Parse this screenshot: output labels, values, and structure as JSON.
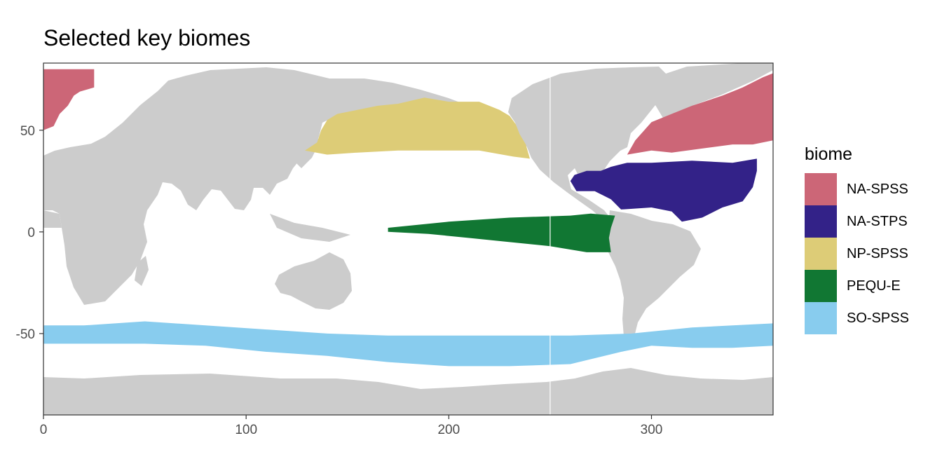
{
  "title": "Selected key biomes",
  "chart_data": {
    "type": "map",
    "title": "Selected key biomes",
    "xlabel": "",
    "ylabel": "",
    "xlim": [
      0,
      360
    ],
    "ylim": [
      -90,
      83
    ],
    "x_ticks": [
      0,
      100,
      200,
      300
    ],
    "y_ticks": [
      -50,
      0,
      50
    ],
    "grid": false,
    "land_color": "#cccccc",
    "ocean_color": "#ffffff",
    "legend": {
      "title": "biome",
      "position": "right",
      "entries": [
        {
          "name": "NA-SPSS",
          "color": "#cc6677"
        },
        {
          "name": "NA-STPS",
          "color": "#332288"
        },
        {
          "name": "NP-SPSS",
          "color": "#ddcc77"
        },
        {
          "name": "PEQU-E",
          "color": "#117733"
        },
        {
          "name": "SO-SPSS",
          "color": "#88ccee"
        }
      ]
    },
    "regions": [
      {
        "name": "SO-SPSS",
        "color": "#88ccee",
        "outline": [
          [
            0,
            -46
          ],
          [
            20,
            -46
          ],
          [
            50,
            -44
          ],
          [
            80,
            -46
          ],
          [
            110,
            -48
          ],
          [
            140,
            -50
          ],
          [
            170,
            -51
          ],
          [
            200,
            -51
          ],
          [
            230,
            -51
          ],
          [
            260,
            -51
          ],
          [
            290,
            -50
          ],
          [
            320,
            -47
          ],
          [
            340,
            -46
          ],
          [
            360,
            -45
          ],
          [
            360,
            -56
          ],
          [
            340,
            -57
          ],
          [
            320,
            -57
          ],
          [
            300,
            -56
          ],
          [
            285,
            -59
          ],
          [
            260,
            -65
          ],
          [
            230,
            -66
          ],
          [
            200,
            -66
          ],
          [
            170,
            -64
          ],
          [
            140,
            -61
          ],
          [
            110,
            -59
          ],
          [
            80,
            -56
          ],
          [
            50,
            -55
          ],
          [
            20,
            -55
          ],
          [
            0,
            -55
          ]
        ]
      },
      {
        "name": "PEQU-E",
        "color": "#117733",
        "outline": [
          [
            170,
            2
          ],
          [
            200,
            5
          ],
          [
            230,
            7
          ],
          [
            260,
            8
          ],
          [
            270,
            9
          ],
          [
            282,
            8
          ],
          [
            280,
            2
          ],
          [
            279,
            -3
          ],
          [
            280,
            -10
          ],
          [
            268,
            -10
          ],
          [
            250,
            -7
          ],
          [
            230,
            -5
          ],
          [
            210,
            -3
          ],
          [
            190,
            -1
          ],
          [
            170,
            0
          ]
        ]
      },
      {
        "name": "NP-SPSS",
        "color": "#ddcc77",
        "outline": [
          [
            129,
            40
          ],
          [
            135,
            44
          ],
          [
            137,
            50
          ],
          [
            140,
            55
          ],
          [
            145,
            58
          ],
          [
            150,
            59
          ],
          [
            160,
            61
          ],
          [
            165,
            62
          ],
          [
            175,
            63
          ],
          [
            188,
            66
          ],
          [
            200,
            64
          ],
          [
            215,
            64
          ],
          [
            225,
            60
          ],
          [
            230,
            57
          ],
          [
            233,
            53
          ],
          [
            235,
            48
          ],
          [
            238,
            43
          ],
          [
            240,
            36
          ],
          [
            232,
            37
          ],
          [
            215,
            40
          ],
          [
            195,
            40
          ],
          [
            175,
            40
          ],
          [
            155,
            39
          ],
          [
            140,
            38
          ]
        ]
      },
      {
        "name": "NA-STPS",
        "color": "#332288",
        "outline": [
          [
            262,
            28
          ],
          [
            268,
            30
          ],
          [
            275,
            30
          ],
          [
            280,
            32
          ],
          [
            288,
            34
          ],
          [
            300,
            34
          ],
          [
            320,
            35
          ],
          [
            340,
            34
          ],
          [
            352,
            36
          ],
          [
            352,
            30
          ],
          [
            350,
            22
          ],
          [
            345,
            15
          ],
          [
            335,
            12
          ],
          [
            325,
            7
          ],
          [
            315,
            5
          ],
          [
            310,
            10
          ],
          [
            300,
            12
          ],
          [
            285,
            11
          ],
          [
            280,
            16
          ],
          [
            272,
            20
          ],
          [
            263,
            20
          ],
          [
            260,
            25
          ]
        ]
      },
      {
        "name": "NA-SPSS",
        "color": "#cc6677",
        "outline": [
          [
            288,
            38
          ],
          [
            300,
            40
          ],
          [
            310,
            39
          ],
          [
            325,
            41
          ],
          [
            340,
            43
          ],
          [
            350,
            43
          ],
          [
            360,
            45
          ],
          [
            360,
            78
          ],
          [
            355,
            76
          ],
          [
            345,
            71
          ],
          [
            335,
            67
          ],
          [
            320,
            62
          ],
          [
            310,
            58
          ],
          [
            300,
            54
          ],
          [
            292,
            45
          ]
        ]
      },
      {
        "name": "NA-SPSS",
        "color": "#cc6677",
        "outline": [
          [
            0,
            50
          ],
          [
            5,
            52
          ],
          [
            8,
            58
          ],
          [
            12,
            62
          ],
          [
            15,
            67
          ],
          [
            18,
            69
          ],
          [
            25,
            71
          ],
          [
            25,
            80
          ],
          [
            0,
            80
          ]
        ]
      }
    ]
  }
}
